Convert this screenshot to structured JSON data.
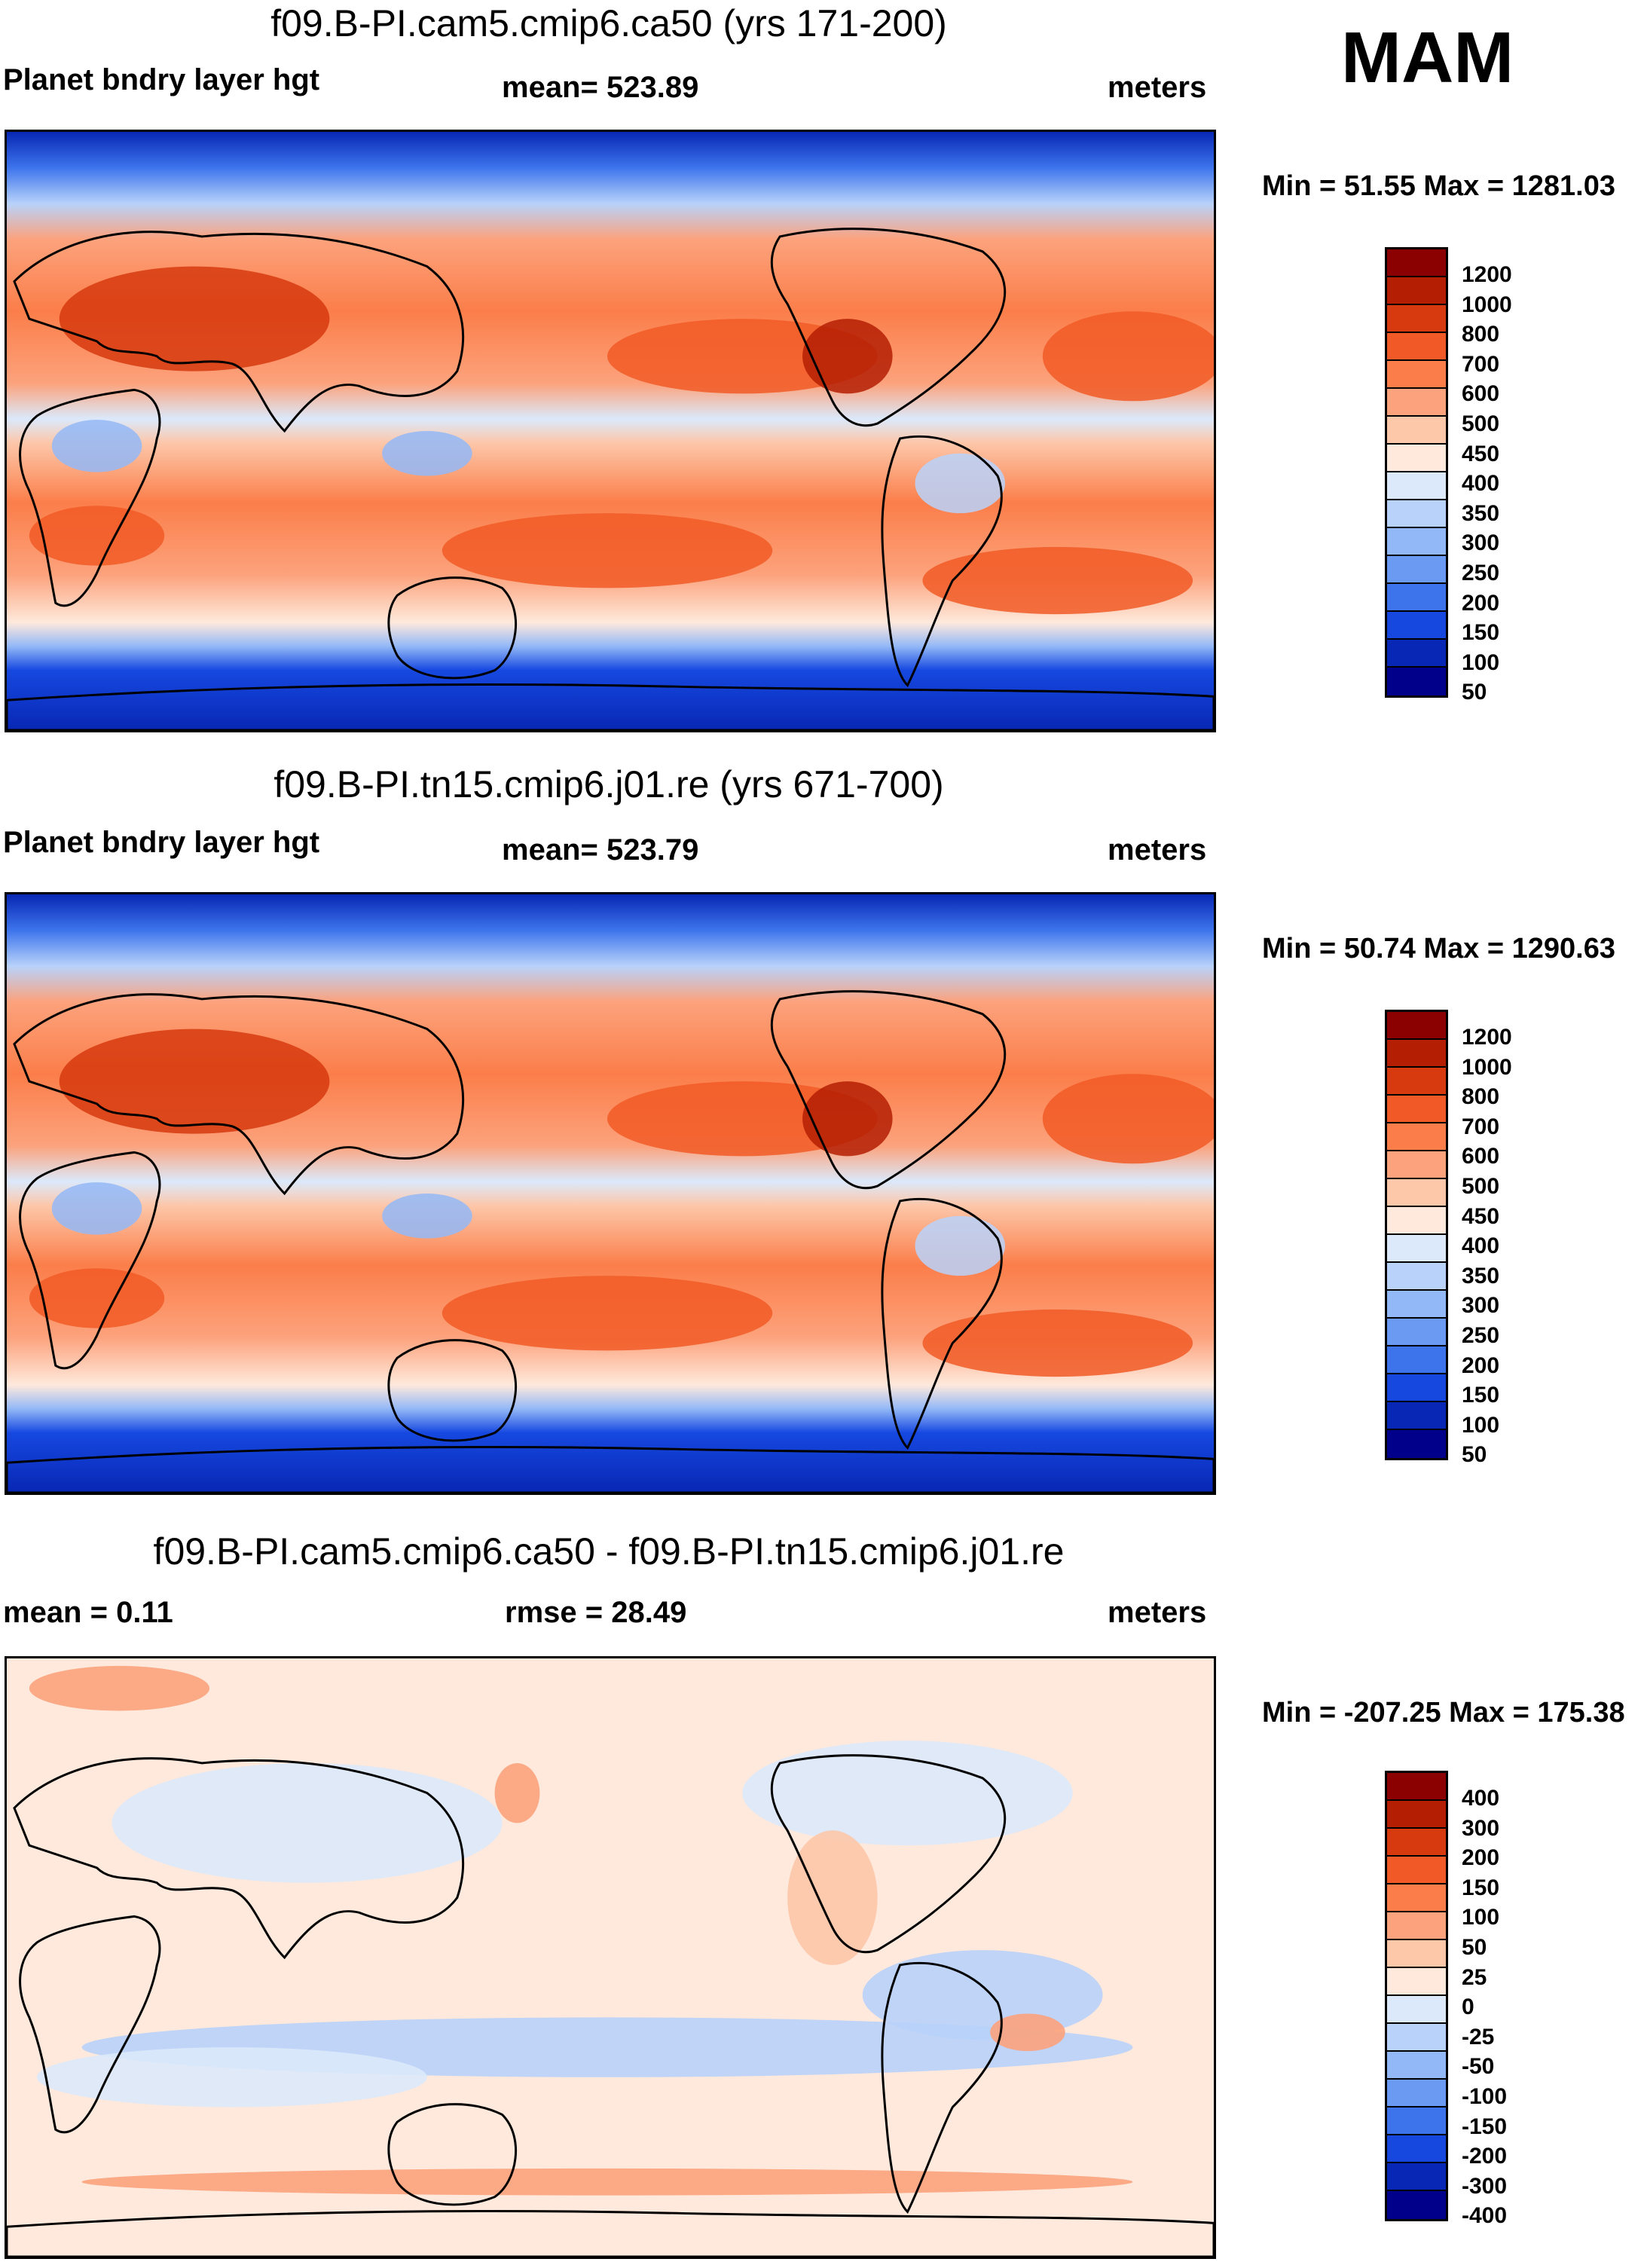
{
  "season": "MAM",
  "panels": [
    {
      "title": "f09.B-PI.cam5.cmip6.ca50 (yrs 171-200)",
      "left_label": "Planet bndry layer hgt",
      "center_label": "mean= 523.89",
      "right_label": "meters",
      "minmax": "Min =  51.55 Max = 1281.03",
      "colorbar_labels": [
        "1200",
        "1000",
        "800",
        "700",
        "600",
        "500",
        "450",
        "400",
        "350",
        "300",
        "250",
        "200",
        "150",
        "100",
        "50"
      ],
      "colors": [
        "#8b0000",
        "#b41f04",
        "#d63a0e",
        "#f15a26",
        "#fb7e4a",
        "#fca27c",
        "#fdc7a9",
        "#fee9dc",
        "#dbe9fb",
        "#b8d2fa",
        "#93b8f7",
        "#6a9af2",
        "#3d74ec",
        "#1648e0",
        "#0827b4",
        "#00008b"
      ],
      "pattern": "mean"
    },
    {
      "title": "f09.B-PI.tn15.cmip6.j01.re (yrs 671-700)",
      "left_label": "Planet bndry layer hgt",
      "center_label": "mean= 523.79",
      "right_label": "meters",
      "minmax": "Min =  50.74 Max = 1290.63",
      "colorbar_labels": [
        "1200",
        "1000",
        "800",
        "700",
        "600",
        "500",
        "450",
        "400",
        "350",
        "300",
        "250",
        "200",
        "150",
        "100",
        "50"
      ],
      "colors": [
        "#8b0000",
        "#b41f04",
        "#d63a0e",
        "#f15a26",
        "#fb7e4a",
        "#fca27c",
        "#fdc7a9",
        "#fee9dc",
        "#dbe9fb",
        "#b8d2fa",
        "#93b8f7",
        "#6a9af2",
        "#3d74ec",
        "#1648e0",
        "#0827b4",
        "#00008b"
      ],
      "pattern": "mean"
    },
    {
      "title": "f09.B-PI.cam5.cmip6.ca50 - f09.B-PI.tn15.cmip6.j01.re",
      "left_label": "mean =    0.11",
      "center_label": "rmse =  28.49",
      "right_label": "meters",
      "minmax": "Min = -207.25 Max = 175.38",
      "colorbar_labels": [
        "400",
        "300",
        "200",
        "150",
        "100",
        "50",
        "25",
        "0",
        "-25",
        "-50",
        "-100",
        "-150",
        "-200",
        "-300",
        "-400"
      ],
      "colors": [
        "#8b0000",
        "#b41f04",
        "#d63a0e",
        "#f15a26",
        "#fb7e4a",
        "#fca27c",
        "#fdc7a9",
        "#fee9dc",
        "#dbe9fb",
        "#b8d2fa",
        "#93b8f7",
        "#6a9af2",
        "#3d74ec",
        "#1648e0",
        "#0827b4",
        "#00008b"
      ],
      "pattern": "diff"
    }
  ]
}
